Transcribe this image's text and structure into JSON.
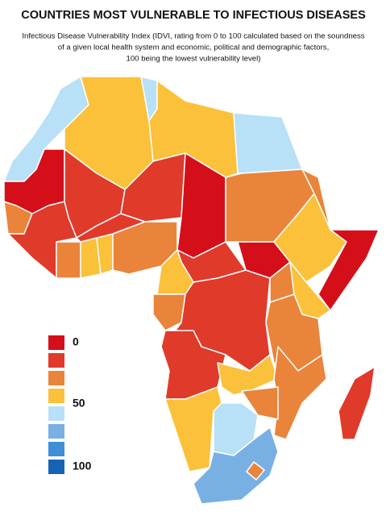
{
  "title": "COUNTRIES MOST VULNERABLE TO INFECTIOUS DISEASES",
  "subtitle": [
    "Infectious Disease Vulnerability Index (IDVI, rating from 0 to 100 calculated based on the soundness",
    "of a given local health system and economic, political and demographic factors,",
    "100 being the lowest vulnerability level)"
  ],
  "legend": {
    "items": [
      {
        "color": "#d40f1a",
        "label": "0"
      },
      {
        "color": "#e03a2b"
      },
      {
        "color": "#e9843a"
      },
      {
        "color": "#fbc13b",
        "label": "50"
      },
      {
        "color": "#b8e0f6"
      },
      {
        "color": "#79b0e4"
      },
      {
        "color": "#3e8ed8"
      },
      {
        "color": "#1663b6",
        "label": "100"
      }
    ]
  }
}
